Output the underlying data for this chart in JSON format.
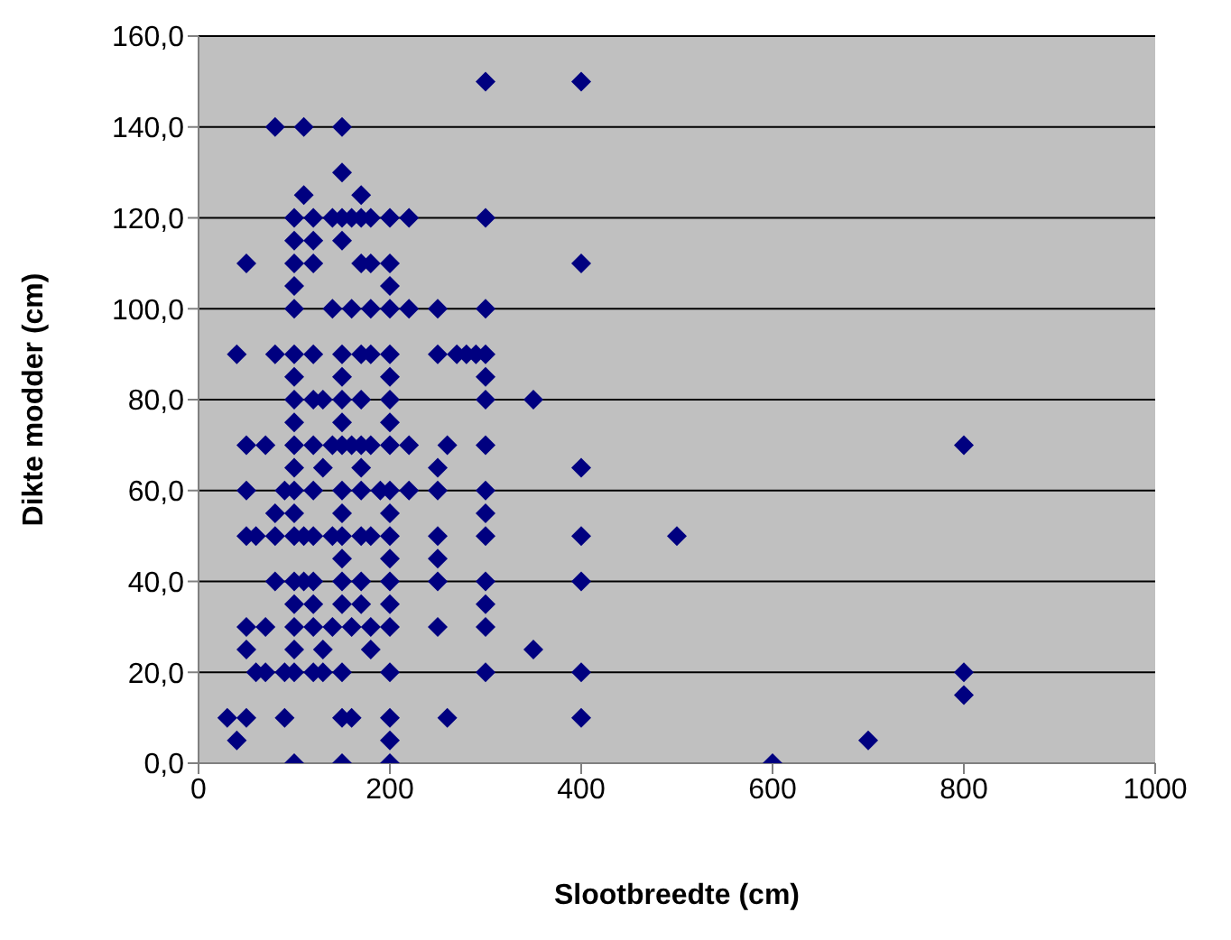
{
  "chart_data": {
    "type": "scatter",
    "xlabel": "Slootbreedte (cm)",
    "ylabel": "Dikte modder (cm)",
    "xlim": [
      0,
      1000
    ],
    "xticks": [
      0,
      200,
      400,
      600,
      800,
      1000
    ],
    "ylim": [
      0,
      160
    ],
    "yticks": [
      {
        "value": 0,
        "label": "0,0"
      },
      {
        "value": 20,
        "label": "20,0"
      },
      {
        "value": 40,
        "label": "40,0"
      },
      {
        "value": 60,
        "label": "60,0"
      },
      {
        "value": 80,
        "label": "80,0"
      },
      {
        "value": 100,
        "label": "100,0"
      },
      {
        "value": 120,
        "label": "120,0"
      },
      {
        "value": 140,
        "label": "140,0"
      },
      {
        "value": 160,
        "label": "160,0"
      }
    ],
    "grid": "y",
    "marker": "diamond",
    "series": [
      {
        "color": "#000080",
        "x": [
          300,
          400,
          300,
          400,
          300,
          290,
          300,
          300,
          300,
          350,
          300,
          800,
          400,
          300,
          300,
          300,
          400,
          500,
          300,
          400,
          300,
          300,
          350,
          300,
          400,
          800,
          800,
          400,
          600,
          700,
          250,
          250,
          260,
          250,
          250,
          250,
          250,
          250,
          250,
          260,
          270,
          280,
          80,
          110,
          150,
          150,
          110,
          170,
          100,
          120,
          140,
          150,
          160,
          170,
          180,
          200,
          220,
          100,
          120,
          150,
          50,
          100,
          120,
          170,
          180,
          200,
          100,
          200,
          100,
          140,
          160,
          180,
          200,
          220,
          40,
          80,
          100,
          120,
          150,
          170,
          180,
          200,
          100,
          150,
          200,
          100,
          120,
          130,
          150,
          170,
          200,
          100,
          150,
          200,
          50,
          70,
          100,
          120,
          140,
          150,
          160,
          170,
          180,
          200,
          220,
          100,
          130,
          170,
          50,
          90,
          100,
          120,
          150,
          170,
          190,
          200,
          220,
          80,
          100,
          150,
          200,
          50,
          60,
          80,
          100,
          110,
          120,
          140,
          150,
          170,
          180,
          200,
          150,
          200,
          80,
          100,
          110,
          120,
          150,
          170,
          200,
          100,
          120,
          150,
          170,
          200,
          50,
          70,
          100,
          120,
          140,
          160,
          180,
          200,
          50,
          100,
          130,
          180,
          60,
          70,
          90,
          100,
          120,
          130,
          150,
          200,
          30,
          50,
          90,
          150,
          160,
          200,
          40,
          200,
          100,
          150,
          200
        ],
        "values": [
          150,
          150,
          120,
          110,
          100,
          90,
          90,
          85,
          80,
          80,
          70,
          70,
          65,
          60,
          55,
          50,
          50,
          50,
          40,
          40,
          35,
          30,
          25,
          20,
          20,
          20,
          15,
          10,
          0,
          5,
          100,
          90,
          70,
          65,
          60,
          50,
          45,
          40,
          30,
          10,
          90,
          90,
          140,
          140,
          140,
          130,
          125,
          125,
          120,
          120,
          120,
          120,
          120,
          120,
          120,
          120,
          120,
          115,
          115,
          115,
          110,
          110,
          110,
          110,
          110,
          110,
          105,
          105,
          100,
          100,
          100,
          100,
          100,
          100,
          90,
          90,
          90,
          90,
          90,
          90,
          90,
          90,
          85,
          85,
          85,
          80,
          80,
          80,
          80,
          80,
          80,
          75,
          75,
          75,
          70,
          70,
          70,
          70,
          70,
          70,
          70,
          70,
          70,
          70,
          70,
          65,
          65,
          65,
          60,
          60,
          60,
          60,
          60,
          60,
          60,
          60,
          60,
          55,
          55,
          55,
          55,
          50,
          50,
          50,
          50,
          50,
          50,
          50,
          50,
          50,
          50,
          50,
          45,
          45,
          40,
          40,
          40,
          40,
          40,
          40,
          40,
          35,
          35,
          35,
          35,
          35,
          30,
          30,
          30,
          30,
          30,
          30,
          30,
          30,
          25,
          25,
          25,
          25,
          20,
          20,
          20,
          20,
          20,
          20,
          20,
          20,
          10,
          10,
          10,
          10,
          10,
          10,
          5,
          5,
          0,
          0,
          0
        ]
      }
    ]
  }
}
